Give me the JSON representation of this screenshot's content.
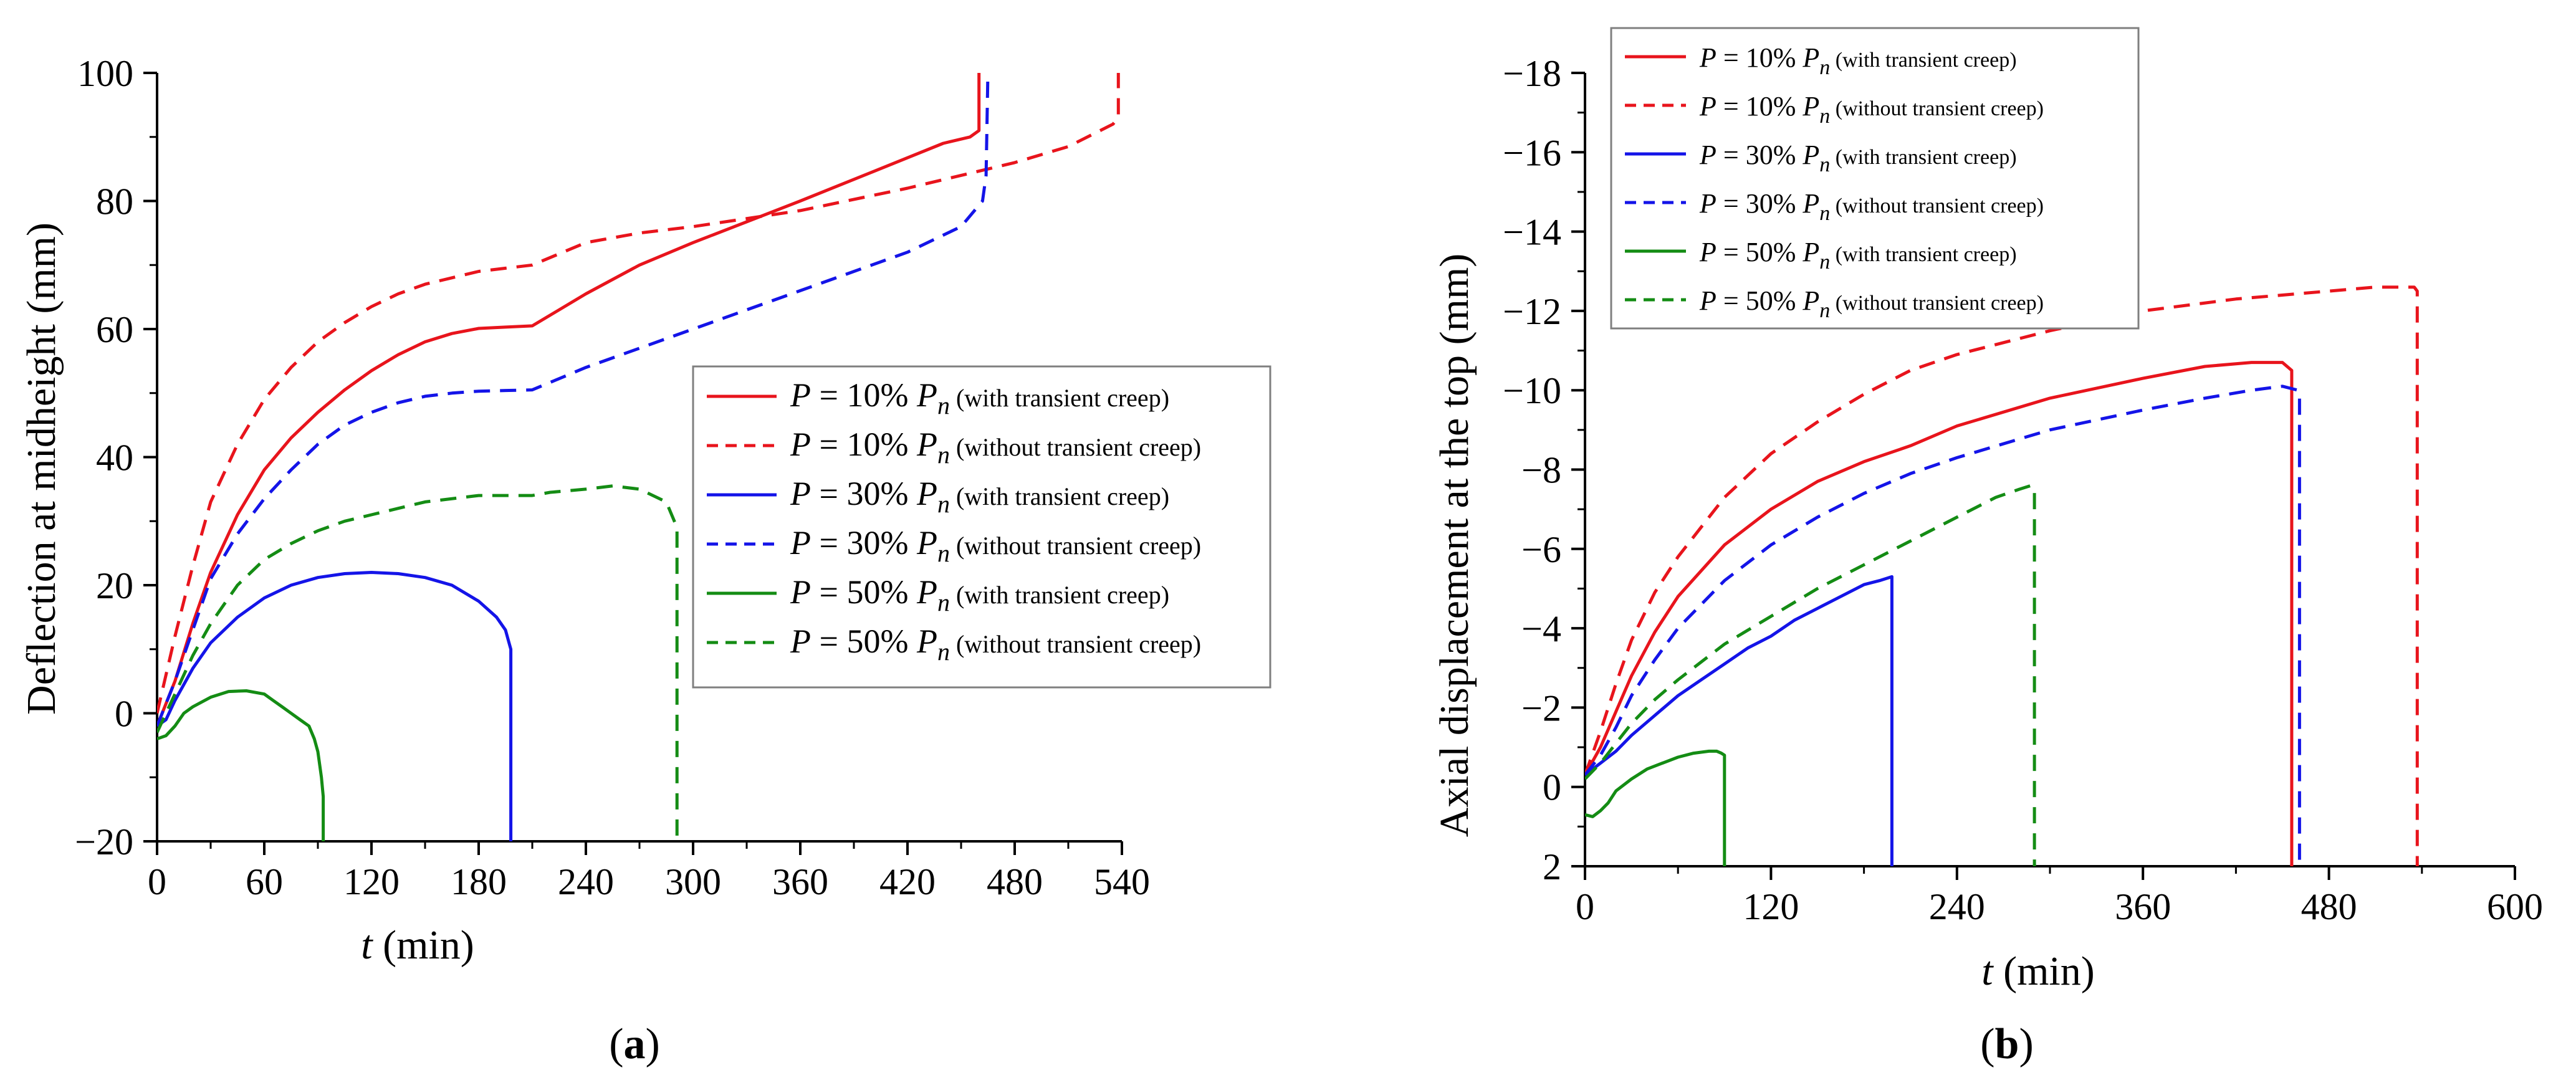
{
  "chart_data": [
    {
      "type": "line",
      "panel_label": "a",
      "xlabel_var": "t",
      "xlabel_unit": " (min)",
      "ylabel": "Deflection at midheight (mm)",
      "xlim": [
        0,
        540
      ],
      "ylim": [
        -20,
        100
      ],
      "y_reversed": false,
      "xticks": [
        "0",
        "60",
        "120",
        "180",
        "240",
        "300",
        "360",
        "420",
        "480",
        "540"
      ],
      "yticks": [
        "−20",
        "0",
        "20",
        "40",
        "60",
        "80",
        "100"
      ],
      "legend_position": "center-right",
      "series": [
        {
          "name": "P = 10% Pn (with transient creep)",
          "pct": "10%",
          "note": "(with transient creep)",
          "color": "#e8141c",
          "dash": "solid",
          "x": [
            0,
            10,
            20,
            30,
            45,
            60,
            75,
            90,
            105,
            120,
            135,
            150,
            165,
            180,
            195,
            210,
            240,
            270,
            300,
            360,
            400,
            440,
            455,
            460,
            460
          ],
          "y": [
            -2,
            5,
            14,
            22,
            31,
            38,
            43,
            47,
            50.5,
            53.5,
            56,
            58,
            59.3,
            60.1,
            60.3,
            60.5,
            65.5,
            70,
            73.5,
            80,
            84.5,
            89,
            90,
            91,
            100
          ]
        },
        {
          "name": "P = 10% Pn (without transient creep)",
          "pct": "10%",
          "note": "(without transient creep)",
          "color": "#e8141c",
          "dash": "dashed",
          "x": [
            0,
            10,
            20,
            30,
            45,
            60,
            75,
            90,
            105,
            120,
            135,
            150,
            165,
            180,
            195,
            210,
            240,
            270,
            300,
            360,
            420,
            480,
            510,
            535,
            538,
            538
          ],
          "y": [
            0,
            12,
            23,
            33,
            42,
            49,
            54,
            58,
            61,
            63.5,
            65.5,
            67,
            68,
            69,
            69.5,
            70,
            73.5,
            75,
            76,
            78.5,
            82,
            86,
            88.5,
            92,
            93,
            100
          ]
        },
        {
          "name": "P = 30% Pn (with transient creep)",
          "pct": "30%",
          "note": "(with transient creep)",
          "color": "#1414e8",
          "dash": "solid",
          "x": [
            0,
            5,
            10,
            20,
            30,
            45,
            60,
            75,
            90,
            105,
            120,
            135,
            150,
            165,
            180,
            190,
            195,
            197,
            198,
            198
          ],
          "y": [
            -2,
            -1,
            2,
            7,
            11,
            15,
            18,
            20,
            21.2,
            21.8,
            22,
            21.8,
            21.2,
            20,
            17.5,
            15,
            13,
            11,
            10,
            -20
          ]
        },
        {
          "name": "P = 30% Pn (without transient creep)",
          "pct": "30%",
          "note": "(without transient creep)",
          "color": "#1414e8",
          "dash": "dashed",
          "x": [
            0,
            10,
            20,
            30,
            45,
            60,
            75,
            90,
            105,
            120,
            135,
            150,
            165,
            180,
            195,
            210,
            240,
            270,
            300,
            360,
            420,
            450,
            462,
            464,
            465
          ],
          "y": [
            -2,
            5,
            13,
            21,
            28,
            33.5,
            38,
            42,
            45,
            47,
            48.5,
            49.5,
            50,
            50.3,
            50.4,
            50.5,
            54,
            57,
            60,
            66,
            72,
            76,
            80,
            84,
            100
          ]
        },
        {
          "name": "P = 50% Pn (with transient creep)",
          "pct": "50%",
          "note": "(with transient creep)",
          "color": "#148c14",
          "dash": "solid",
          "x": [
            0,
            5,
            10,
            15,
            20,
            30,
            40,
            50,
            60,
            65,
            70,
            75,
            80,
            85,
            88,
            90,
            92,
            93,
            93
          ],
          "y": [
            -4,
            -3.5,
            -2,
            0,
            1,
            2.5,
            3.4,
            3.5,
            3,
            2,
            1,
            0,
            -1,
            -2,
            -4,
            -6,
            -10,
            -13,
            -20
          ]
        },
        {
          "name": "P = 50% Pn (without transient creep)",
          "pct": "50%",
          "note": "(without transient creep)",
          "color": "#148c14",
          "dash": "dashed",
          "x": [
            0,
            10,
            20,
            30,
            45,
            60,
            75,
            90,
            105,
            120,
            135,
            150,
            180,
            210,
            220,
            240,
            255,
            270,
            285,
            291,
            291
          ],
          "y": [
            -3,
            3,
            9,
            14,
            20,
            24,
            26.5,
            28.5,
            30,
            31,
            32,
            33,
            34,
            34,
            34.5,
            35,
            35.5,
            35,
            33,
            29,
            -20
          ]
        }
      ]
    },
    {
      "type": "line",
      "panel_label": "b",
      "xlabel_var": "t",
      "xlabel_unit": " (min)",
      "ylabel": "Axial displacement at the top (mm)",
      "xlim": [
        0,
        600
      ],
      "ylim": [
        2,
        -18
      ],
      "y_reversed": true,
      "xticks": [
        "0",
        "120",
        "240",
        "360",
        "480",
        "600"
      ],
      "yticks": [
        "2",
        "0",
        "−2",
        "−4",
        "−6",
        "−8",
        "−10",
        "−12",
        "−14",
        "−16",
        "−18"
      ],
      "legend_position": "top-left",
      "series": [
        {
          "name": "P = 10% Pn (with transient creep)",
          "pct": "10%",
          "note": "(with transient creep)",
          "color": "#e8141c",
          "dash": "solid",
          "x": [
            0,
            10,
            20,
            30,
            45,
            60,
            90,
            120,
            150,
            180,
            210,
            240,
            300,
            360,
            400,
            430,
            450,
            456,
            456,
            456
          ],
          "y": [
            -0.3,
            -1,
            -1.9,
            -2.8,
            -3.9,
            -4.8,
            -6.1,
            -7,
            -7.7,
            -8.2,
            -8.6,
            -9.1,
            -9.8,
            -10.3,
            -10.6,
            -10.7,
            -10.7,
            -10.5,
            -10,
            2
          ]
        },
        {
          "name": "P = 10% Pn (without transient creep)",
          "pct": "10%",
          "note": "(without transient creep)",
          "color": "#e8141c",
          "dash": "dashed",
          "x": [
            0,
            10,
            20,
            30,
            45,
            60,
            90,
            120,
            150,
            180,
            210,
            240,
            300,
            360,
            420,
            480,
            510,
            535,
            537,
            537
          ],
          "y": [
            -0.3,
            -1.4,
            -2.6,
            -3.7,
            -4.9,
            -5.8,
            -7.3,
            -8.4,
            -9.2,
            -9.9,
            -10.5,
            -10.9,
            -11.5,
            -12,
            -12.3,
            -12.5,
            -12.6,
            -12.6,
            -12.5,
            2
          ]
        },
        {
          "name": "P = 30% Pn (with transient creep)",
          "pct": "30%",
          "note": "(with transient creep)",
          "color": "#1414e8",
          "dash": "solid",
          "x": [
            0,
            10,
            20,
            30,
            45,
            60,
            75,
            90,
            105,
            120,
            135,
            150,
            165,
            180,
            190,
            198,
            198,
            198
          ],
          "y": [
            -0.3,
            -0.6,
            -0.9,
            -1.3,
            -1.8,
            -2.3,
            -2.7,
            -3.1,
            -3.5,
            -3.8,
            -4.2,
            -4.5,
            -4.8,
            -5.1,
            -5.2,
            -5.3,
            -5.2,
            2
          ]
        },
        {
          "name": "P = 30% Pn (without transient creep)",
          "pct": "30%",
          "note": "(without transient creep)",
          "color": "#1414e8",
          "dash": "dashed",
          "x": [
            0,
            10,
            20,
            30,
            45,
            60,
            90,
            120,
            150,
            180,
            210,
            240,
            300,
            360,
            400,
            430,
            450,
            460,
            461,
            461
          ],
          "y": [
            -0.3,
            -0.8,
            -1.5,
            -2.3,
            -3.2,
            -4,
            -5.2,
            -6.1,
            -6.8,
            -7.4,
            -7.9,
            -8.3,
            -9,
            -9.5,
            -9.8,
            -10,
            -10.1,
            -10,
            -9.9,
            2
          ]
        },
        {
          "name": "P = 50% Pn (with transient creep)",
          "pct": "50%",
          "note": "(with transient creep)",
          "color": "#148c14",
          "dash": "solid",
          "x": [
            0,
            5,
            10,
            15,
            20,
            30,
            40,
            50,
            60,
            70,
            80,
            85,
            88,
            90,
            90
          ],
          "y": [
            0.7,
            0.75,
            0.6,
            0.4,
            0.1,
            -0.2,
            -0.45,
            -0.6,
            -0.75,
            -0.85,
            -0.9,
            -0.9,
            -0.85,
            -0.8,
            2
          ]
        },
        {
          "name": "P = 50% Pn (without transient creep)",
          "pct": "50%",
          "note": "(without transient creep)",
          "color": "#148c14",
          "dash": "dashed",
          "x": [
            0,
            10,
            20,
            30,
            45,
            60,
            90,
            120,
            150,
            180,
            210,
            240,
            265,
            280,
            288,
            290,
            290
          ],
          "y": [
            -0.2,
            -0.6,
            -1.1,
            -1.6,
            -2.2,
            -2.7,
            -3.6,
            -4.3,
            -5,
            -5.6,
            -6.2,
            -6.8,
            -7.3,
            -7.5,
            -7.6,
            -7.5,
            2
          ]
        }
      ]
    }
  ]
}
